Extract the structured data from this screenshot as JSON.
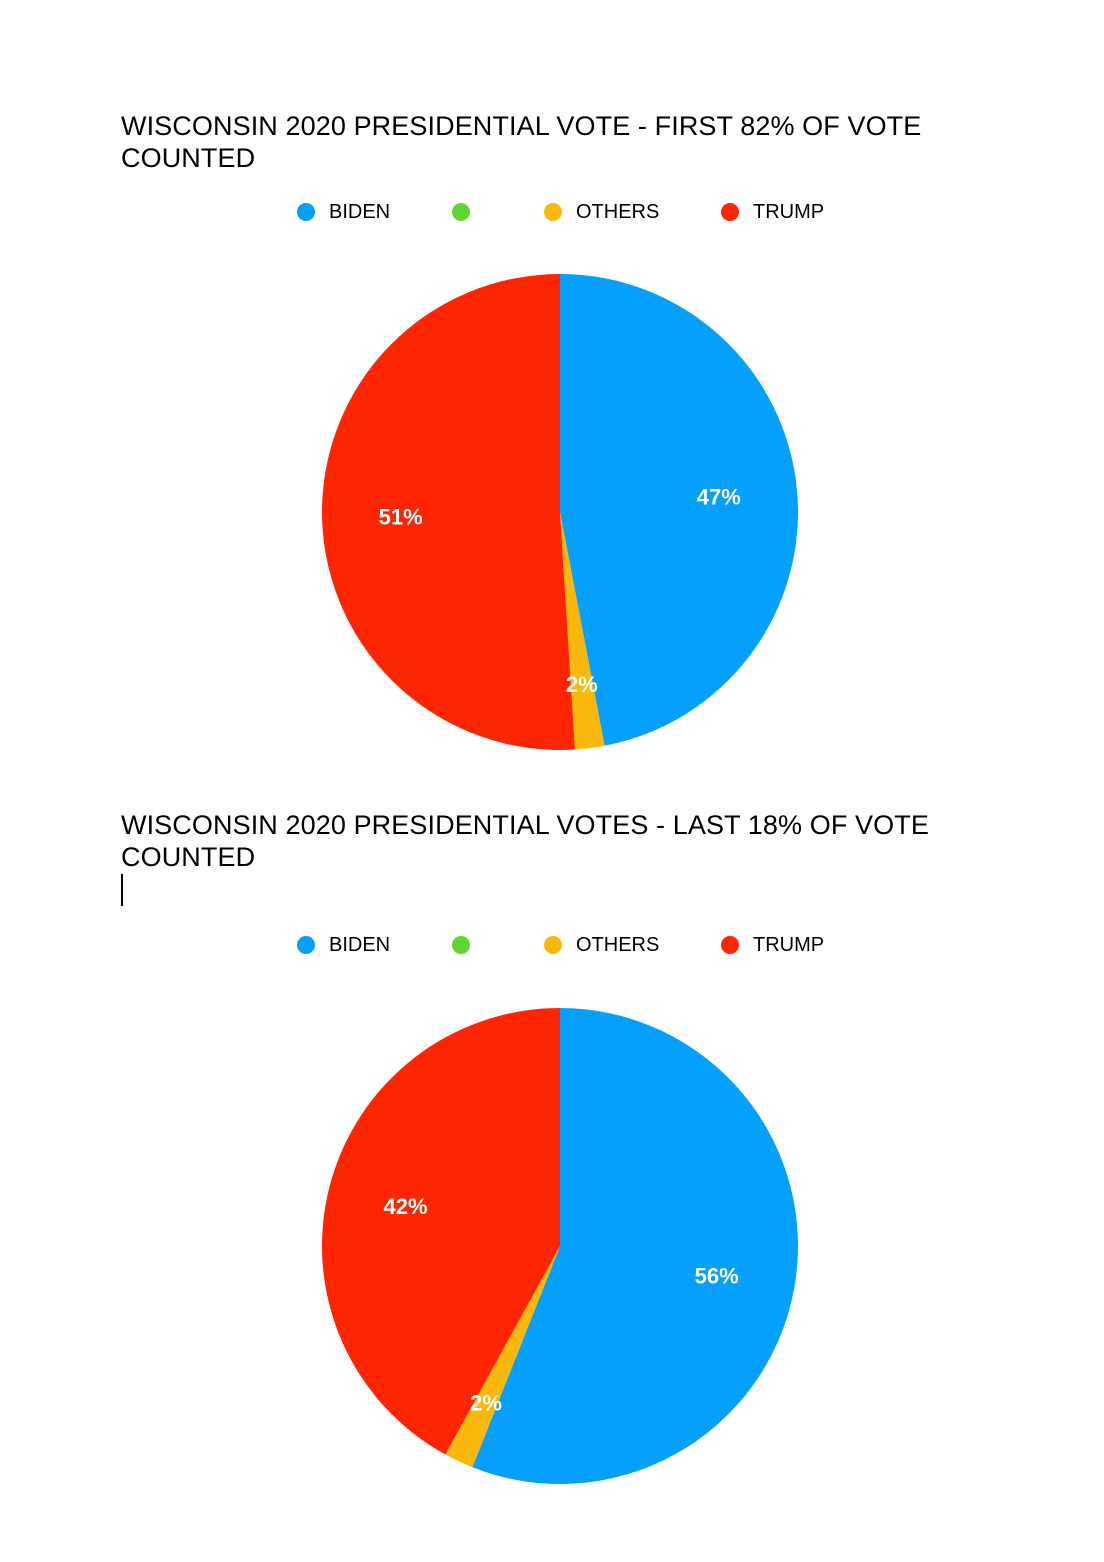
{
  "chart_data": [
    {
      "type": "pie",
      "title": "WISCONSIN 2020 PRESIDENTIAL VOTE - FIRST 82% OF VOTE COUNTED",
      "legend": [
        {
          "label": "BIDEN",
          "color": "#05a0fc"
        },
        {
          "label": "",
          "color": "#5dd72d"
        },
        {
          "label": "OTHERS",
          "color": "#fbb80c"
        },
        {
          "label": "TRUMP",
          "color": "#fe2503"
        }
      ],
      "slices": [
        {
          "name": "BIDEN",
          "value": 47,
          "label": "47%",
          "color": "#05a0fc"
        },
        {
          "name": "OTHERS",
          "value": 2,
          "label": "2%",
          "color": "#fbb80c"
        },
        {
          "name": "TRUMP",
          "value": 51,
          "label": "51%",
          "color": "#fe2503"
        }
      ]
    },
    {
      "type": "pie",
      "title": "WISCONSIN 2020 PRESIDENTIAL VOTES - LAST 18% OF VOTE COUNTED",
      "legend": [
        {
          "label": "BIDEN",
          "color": "#05a0fc"
        },
        {
          "label": "",
          "color": "#5dd72d"
        },
        {
          "label": "OTHERS",
          "color": "#fbb80c"
        },
        {
          "label": "TRUMP",
          "color": "#fe2503"
        }
      ],
      "slices": [
        {
          "name": "BIDEN",
          "value": 56,
          "label": "56%",
          "color": "#05a0fc"
        },
        {
          "name": "OTHERS",
          "value": 2,
          "label": "2%",
          "color": "#fbb80c"
        },
        {
          "name": "TRUMP",
          "value": 42,
          "label": "42%",
          "color": "#fe2503"
        }
      ]
    }
  ]
}
